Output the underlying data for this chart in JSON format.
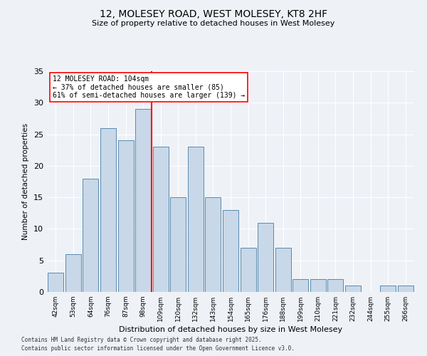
{
  "title_line1": "12, MOLESEY ROAD, WEST MOLESEY, KT8 2HF",
  "title_line2": "Size of property relative to detached houses in West Molesey",
  "xlabel": "Distribution of detached houses by size in West Molesey",
  "ylabel": "Number of detached properties",
  "bar_labels": [
    "42sqm",
    "53sqm",
    "64sqm",
    "76sqm",
    "87sqm",
    "98sqm",
    "109sqm",
    "120sqm",
    "132sqm",
    "143sqm",
    "154sqm",
    "165sqm",
    "176sqm",
    "188sqm",
    "199sqm",
    "210sqm",
    "221sqm",
    "232sqm",
    "244sqm",
    "255sqm",
    "266sqm"
  ],
  "bar_values": [
    3,
    6,
    18,
    26,
    24,
    29,
    23,
    15,
    23,
    15,
    13,
    7,
    11,
    7,
    2,
    2,
    2,
    1,
    0,
    1,
    1
  ],
  "bar_color": "#c8d8e8",
  "bar_edge_color": "#5a8ab0",
  "red_line_x": 5.5,
  "ylim": [
    0,
    35
  ],
  "yticks": [
    0,
    5,
    10,
    15,
    20,
    25,
    30,
    35
  ],
  "annotation_line1": "12 MOLESEY ROAD: 104sqm",
  "annotation_line2": "← 37% of detached houses are smaller (85)",
  "annotation_line3": "61% of semi-detached houses are larger (139) →",
  "footnote_line1": "Contains HM Land Registry data © Crown copyright and database right 2025.",
  "footnote_line2": "Contains public sector information licensed under the Open Government Licence v3.0.",
  "background_color": "#eef2f7",
  "plot_bg_color": "#eef2f7"
}
